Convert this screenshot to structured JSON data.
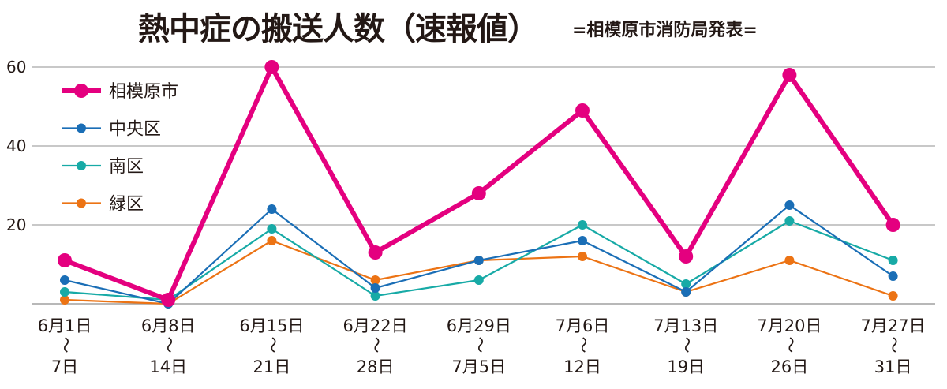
{
  "chart_data": {
    "type": "line",
    "title": "熱中症の搬送人数（速報値）",
    "subtitle": "=相模原市消防局発表=",
    "categories": [
      {
        "from": "6月1日",
        "sep": "～",
        "to": "7日"
      },
      {
        "from": "6月8日",
        "sep": "～",
        "to": "14日"
      },
      {
        "from": "6月15日",
        "sep": "～",
        "to": "21日"
      },
      {
        "from": "6月22日",
        "sep": "～",
        "to": "28日"
      },
      {
        "from": "6月29日",
        "sep": "～",
        "to": "7月5日"
      },
      {
        "from": "7月6日",
        "sep": "～",
        "to": "12日"
      },
      {
        "from": "7月13日",
        "sep": "～",
        "to": "19日"
      },
      {
        "from": "7月20日",
        "sep": "～",
        "to": "26日"
      },
      {
        "from": "7月27日",
        "sep": "～",
        "to": "31日"
      }
    ],
    "ylim": [
      0,
      60
    ],
    "yticks": [
      "20",
      "40",
      "60"
    ],
    "grid": true,
    "legend_position": "top-left",
    "series": [
      {
        "name": "相模原市",
        "color": "#e4007f",
        "values": [
          11,
          1,
          60,
          13,
          28,
          49,
          12,
          58,
          20
        ]
      },
      {
        "name": "中央区",
        "color": "#1a6eb6",
        "values": [
          6,
          0,
          24,
          4,
          11,
          16,
          3,
          25,
          7
        ]
      },
      {
        "name": "南区",
        "color": "#17aaa6",
        "values": [
          3,
          1,
          19,
          2,
          6,
          20,
          5,
          21,
          11
        ]
      },
      {
        "name": "緑区",
        "color": "#ec7314",
        "values": [
          1,
          0,
          16,
          6,
          11,
          12,
          3,
          11,
          2
        ]
      }
    ]
  }
}
